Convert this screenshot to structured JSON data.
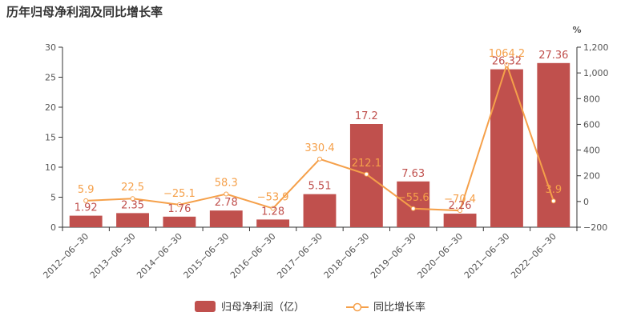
{
  "chart_data": {
    "type": "bar",
    "title": "历年归母净利润及同比增长率",
    "categories": [
      "2012-06-30",
      "2013-06-30",
      "2014-06-30",
      "2015-06-30",
      "2016-06-30",
      "2017-06-30",
      "2018-06-30",
      "2019-06-30",
      "2020-06-30",
      "2021-06-30",
      "2022-06-30"
    ],
    "series": [
      {
        "name": "归母净利润（亿）",
        "type": "bar",
        "axis": "left",
        "color": "#c0504d",
        "values": [
          1.92,
          2.35,
          1.76,
          2.78,
          1.28,
          5.51,
          17.2,
          7.63,
          2.26,
          26.32,
          27.36
        ]
      },
      {
        "name": "同比增长率",
        "type": "line",
        "axis": "right",
        "color": "#f5a04a",
        "values": [
          5.9,
          22.5,
          -25.1,
          58.3,
          -53.9,
          330.4,
          212.1,
          -55.6,
          -70.4,
          1064.2,
          3.9
        ]
      }
    ],
    "ylim_left": [
      0,
      30
    ],
    "yticks_left": [
      0,
      5,
      10,
      15,
      20,
      25,
      30
    ],
    "ylim_right": [
      -200,
      1200
    ],
    "yticks_right": [
      "-200",
      "0",
      "200",
      "400",
      "600",
      "800",
      "1,000",
      "1,200"
    ],
    "right_axis_unit": "%",
    "grid": false,
    "legend_position": "bottom-center"
  }
}
